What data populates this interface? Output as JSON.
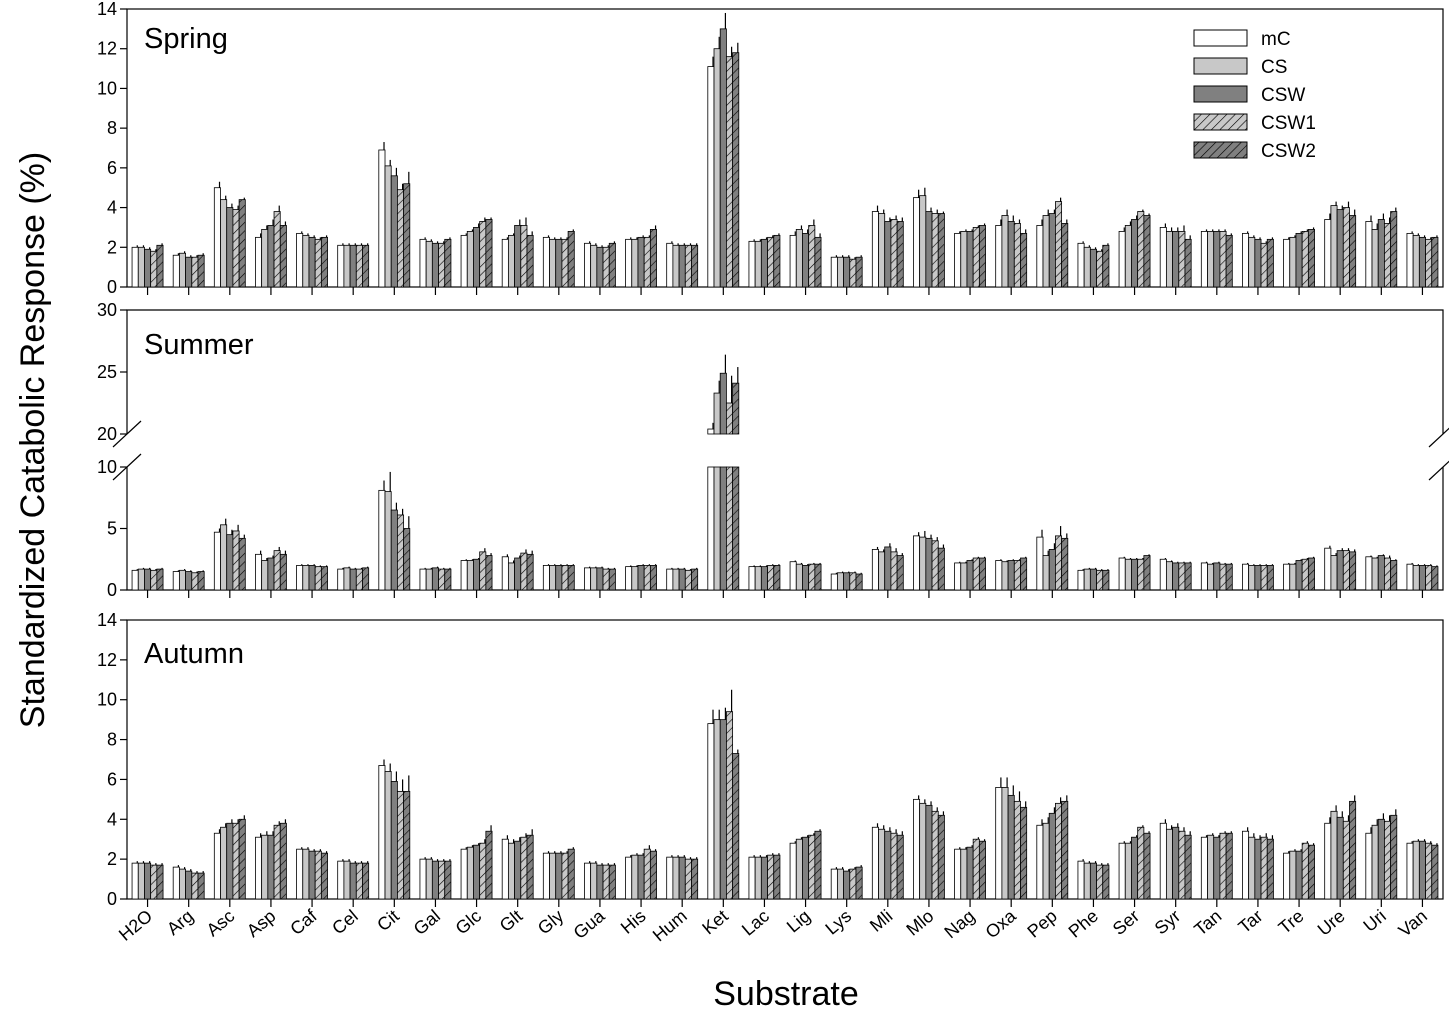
{
  "chart_data": {
    "type": "bar",
    "ylabel": "Standardized Catabolic Response (%)",
    "xlabel": "Substrate",
    "categories": [
      "H2O",
      "Arg",
      "Asc",
      "Asp",
      "Caf",
      "Cel",
      "Cit",
      "Gal",
      "Glc",
      "Glt",
      "Gly",
      "Gua",
      "His",
      "Hum",
      "Ket",
      "Lac",
      "Lig",
      "Lys",
      "Mli",
      "Mlo",
      "Nag",
      "Oxa",
      "Pep",
      "Phe",
      "Ser",
      "Syr",
      "Tan",
      "Tar",
      "Tre",
      "Ure",
      "Uri",
      "Van"
    ],
    "series_names": [
      "mC",
      "CS",
      "CSW",
      "CSW1",
      "CSW2"
    ],
    "colors": [
      "#ffffff",
      "#c8c8c8",
      "#808080",
      "#c8c8c8",
      "#808080"
    ],
    "patterns": [
      "solid",
      "solid",
      "solid",
      "hatch",
      "hatch"
    ],
    "panels": [
      {
        "title": "Spring",
        "ylim": [
          0,
          14
        ],
        "yticks": [
          "0",
          "2",
          "4",
          "6",
          "8",
          "10",
          "12",
          "14"
        ],
        "legend": "top-right",
        "values": [
          [
            2.0,
            1.6,
            5.0,
            2.5,
            2.7,
            2.1,
            6.9,
            2.4,
            2.6,
            2.4,
            2.5,
            2.2,
            2.4,
            2.2,
            11.1,
            2.3,
            2.6,
            1.5,
            3.8,
            4.5,
            2.7,
            3.1,
            3.1,
            2.2,
            2.8,
            3.0,
            2.8,
            2.7,
            2.4,
            3.4,
            3.3,
            2.7
          ],
          [
            2.0,
            1.7,
            4.4,
            2.9,
            2.6,
            2.1,
            6.1,
            2.3,
            2.8,
            2.6,
            2.4,
            2.1,
            2.4,
            2.1,
            12.0,
            2.3,
            2.9,
            1.5,
            3.7,
            4.6,
            2.8,
            3.6,
            3.6,
            2.0,
            3.1,
            2.8,
            2.8,
            2.5,
            2.5,
            4.1,
            2.9,
            2.6
          ],
          [
            1.9,
            1.5,
            4.0,
            3.1,
            2.5,
            2.1,
            5.6,
            2.2,
            3.0,
            3.1,
            2.4,
            2.0,
            2.5,
            2.1,
            13.0,
            2.4,
            2.7,
            1.5,
            3.3,
            3.8,
            2.8,
            3.3,
            3.7,
            1.9,
            3.4,
            2.8,
            2.8,
            2.4,
            2.7,
            3.9,
            3.4,
            2.5
          ],
          [
            1.8,
            1.5,
            3.9,
            3.8,
            2.4,
            2.1,
            4.9,
            2.2,
            3.3,
            3.1,
            2.4,
            2.0,
            2.5,
            2.1,
            11.6,
            2.5,
            3.1,
            1.4,
            3.4,
            3.7,
            3.0,
            3.2,
            4.3,
            1.8,
            3.8,
            2.8,
            2.8,
            2.2,
            2.8,
            4.0,
            3.2,
            2.4
          ],
          [
            2.1,
            1.6,
            4.4,
            3.1,
            2.5,
            2.1,
            5.2,
            2.4,
            3.4,
            2.6,
            2.8,
            2.2,
            2.9,
            2.1,
            11.8,
            2.6,
            2.5,
            1.5,
            3.3,
            3.7,
            3.1,
            2.7,
            3.2,
            2.1,
            3.6,
            2.4,
            2.6,
            2.4,
            2.9,
            3.6,
            3.8,
            2.5
          ]
        ],
        "errors": [
          [
            0.1,
            0.1,
            0.3,
            0.2,
            0.1,
            0.1,
            0.4,
            0.1,
            0.1,
            0.1,
            0.1,
            0.1,
            0.1,
            0.1,
            0.5,
            0.1,
            0.2,
            0.1,
            0.3,
            0.4,
            0.1,
            0.3,
            0.3,
            0.1,
            0.2,
            0.2,
            0.1,
            0.1,
            0.1,
            0.3,
            0.3,
            0.1
          ],
          [
            0.1,
            0.1,
            0.2,
            0.2,
            0.1,
            0.1,
            0.3,
            0.1,
            0.1,
            0.1,
            0.1,
            0.1,
            0.1,
            0.1,
            0.6,
            0.1,
            0.2,
            0.1,
            0.2,
            0.4,
            0.1,
            0.3,
            0.3,
            0.1,
            0.2,
            0.2,
            0.1,
            0.1,
            0.1,
            0.2,
            0.3,
            0.1
          ],
          [
            0.1,
            0.1,
            0.2,
            0.3,
            0.1,
            0.1,
            0.4,
            0.1,
            0.2,
            0.3,
            0.1,
            0.1,
            0.1,
            0.1,
            0.8,
            0.1,
            0.2,
            0.1,
            0.2,
            0.2,
            0.1,
            0.3,
            0.2,
            0.1,
            0.2,
            0.2,
            0.1,
            0.1,
            0.1,
            0.2,
            0.3,
            0.1
          ],
          [
            0.1,
            0.1,
            0.2,
            0.3,
            0.1,
            0.1,
            0.3,
            0.1,
            0.2,
            0.4,
            0.1,
            0.1,
            0.1,
            0.1,
            0.5,
            0.1,
            0.3,
            0.1,
            0.2,
            0.2,
            0.1,
            0.2,
            0.2,
            0.1,
            0.1,
            0.3,
            0.1,
            0.1,
            0.1,
            0.3,
            0.3,
            0.1
          ],
          [
            0.1,
            0.1,
            0.1,
            0.2,
            0.1,
            0.1,
            0.6,
            0.1,
            0.1,
            0.2,
            0.1,
            0.1,
            0.2,
            0.1,
            0.5,
            0.1,
            0.2,
            0.1,
            0.2,
            0.1,
            0.1,
            0.2,
            0.2,
            0.1,
            0.1,
            0.2,
            0.1,
            0.1,
            0.1,
            0.3,
            0.2,
            0.1
          ]
        ]
      },
      {
        "title": "Summer",
        "broken_axis": true,
        "ylim_lower": [
          0,
          10
        ],
        "yticks_lower": [
          "0",
          "5",
          "10"
        ],
        "ylim_upper": [
          20,
          30
        ],
        "yticks_upper": [
          "20",
          "25",
          "30"
        ],
        "values": [
          [
            1.6,
            1.5,
            4.7,
            2.9,
            2.0,
            1.7,
            8.1,
            1.7,
            2.4,
            2.7,
            2.0,
            1.8,
            1.9,
            1.7,
            20.4,
            1.9,
            2.3,
            1.3,
            3.3,
            4.4,
            2.2,
            2.4,
            4.3,
            1.6,
            2.6,
            2.5,
            2.2,
            2.1,
            2.1,
            3.4,
            2.7,
            2.1
          ],
          [
            1.7,
            1.6,
            5.3,
            2.4,
            2.0,
            1.8,
            8.0,
            1.7,
            2.4,
            2.2,
            2.0,
            1.8,
            1.9,
            1.7,
            23.3,
            1.9,
            2.1,
            1.4,
            3.1,
            4.3,
            2.2,
            2.3,
            2.8,
            1.7,
            2.5,
            2.3,
            2.1,
            2.0,
            2.1,
            2.8,
            2.6,
            2.0
          ],
          [
            1.7,
            1.5,
            4.5,
            2.6,
            2.0,
            1.7,
            6.5,
            1.8,
            2.5,
            2.6,
            2.0,
            1.8,
            2.0,
            1.7,
            24.9,
            1.9,
            2.0,
            1.4,
            3.5,
            4.2,
            2.4,
            2.4,
            3.3,
            1.7,
            2.5,
            2.2,
            2.2,
            2.0,
            2.4,
            3.2,
            2.8,
            2.0
          ],
          [
            1.6,
            1.4,
            4.8,
            3.2,
            1.9,
            1.7,
            6.1,
            1.7,
            3.1,
            3.0,
            2.0,
            1.7,
            2.0,
            1.6,
            22.5,
            2.0,
            2.1,
            1.4,
            3.1,
            4.0,
            2.6,
            2.4,
            4.4,
            1.6,
            2.5,
            2.2,
            2.1,
            2.0,
            2.5,
            3.2,
            2.6,
            2.0
          ],
          [
            1.7,
            1.5,
            4.2,
            2.9,
            1.9,
            1.8,
            5.0,
            1.7,
            2.8,
            2.9,
            2.0,
            1.7,
            2.0,
            1.7,
            24.1,
            2.0,
            2.1,
            1.3,
            2.8,
            3.4,
            2.6,
            2.6,
            4.2,
            1.6,
            2.8,
            2.2,
            2.1,
            2.0,
            2.6,
            3.1,
            2.4,
            1.9
          ]
        ],
        "errors": [
          [
            0.1,
            0.1,
            0.3,
            0.3,
            0.1,
            0.1,
            0.8,
            0.1,
            0.1,
            0.2,
            0.1,
            0.1,
            0.1,
            0.1,
            0.5,
            0.1,
            0.1,
            0.1,
            0.2,
            0.3,
            0.1,
            0.1,
            0.6,
            0.1,
            0.1,
            0.1,
            0.1,
            0.1,
            0.1,
            0.2,
            0.1,
            0.1
          ],
          [
            0.1,
            0.1,
            0.5,
            0.2,
            0.1,
            0.1,
            1.6,
            0.1,
            0.1,
            0.2,
            0.1,
            0.1,
            0.1,
            0.1,
            1.0,
            0.1,
            0.1,
            0.1,
            0.2,
            0.5,
            0.1,
            0.1,
            0.4,
            0.1,
            0.1,
            0.1,
            0.1,
            0.1,
            0.1,
            0.2,
            0.1,
            0.1
          ],
          [
            0.1,
            0.1,
            0.4,
            0.2,
            0.1,
            0.1,
            0.6,
            0.1,
            0.1,
            0.2,
            0.1,
            0.1,
            0.1,
            0.1,
            1.5,
            0.1,
            0.1,
            0.1,
            0.3,
            0.3,
            0.1,
            0.1,
            0.5,
            0.1,
            0.1,
            0.1,
            0.1,
            0.1,
            0.1,
            0.2,
            0.1,
            0.1
          ],
          [
            0.1,
            0.1,
            0.5,
            0.3,
            0.1,
            0.1,
            0.5,
            0.1,
            0.3,
            0.3,
            0.1,
            0.1,
            0.1,
            0.1,
            2.2,
            0.1,
            0.1,
            0.1,
            0.3,
            0.3,
            0.1,
            0.1,
            0.8,
            0.1,
            0.1,
            0.1,
            0.1,
            0.1,
            0.1,
            0.2,
            0.2,
            0.1
          ],
          [
            0.1,
            0.1,
            0.3,
            0.3,
            0.1,
            0.1,
            1.0,
            0.1,
            0.2,
            0.3,
            0.1,
            0.1,
            0.1,
            0.1,
            1.3,
            0.1,
            0.1,
            0.1,
            0.2,
            0.3,
            0.1,
            0.1,
            0.4,
            0.1,
            0.1,
            0.1,
            0.1,
            0.1,
            0.1,
            0.2,
            0.1,
            0.1
          ]
        ]
      },
      {
        "title": "Autumn",
        "ylim": [
          0,
          14
        ],
        "yticks": [
          "0",
          "2",
          "4",
          "6",
          "8",
          "10",
          "12",
          "14"
        ],
        "values": [
          [
            1.8,
            1.6,
            3.3,
            3.1,
            2.5,
            1.9,
            6.7,
            2.0,
            2.5,
            3.0,
            2.3,
            1.8,
            2.1,
            2.1,
            8.8,
            2.1,
            2.8,
            1.5,
            3.6,
            5.0,
            2.5,
            5.6,
            3.7,
            1.9,
            2.8,
            3.8,
            3.1,
            3.4,
            2.3,
            3.8,
            3.3,
            2.8
          ],
          [
            1.8,
            1.5,
            3.6,
            3.2,
            2.5,
            1.9,
            6.4,
            2.0,
            2.6,
            2.8,
            2.3,
            1.8,
            2.2,
            2.1,
            9.0,
            2.1,
            3.0,
            1.5,
            3.5,
            4.8,
            2.5,
            5.6,
            3.8,
            1.8,
            2.8,
            3.5,
            3.2,
            3.1,
            2.4,
            4.4,
            3.7,
            2.9
          ],
          [
            1.8,
            1.4,
            3.8,
            3.2,
            2.4,
            1.8,
            5.9,
            1.9,
            2.7,
            2.9,
            2.3,
            1.7,
            2.2,
            2.1,
            9.0,
            2.1,
            3.1,
            1.4,
            3.4,
            4.7,
            2.6,
            5.2,
            4.3,
            1.8,
            3.1,
            3.6,
            3.1,
            3.0,
            2.4,
            4.1,
            4.0,
            2.9
          ],
          [
            1.7,
            1.3,
            3.8,
            3.7,
            2.4,
            1.8,
            5.4,
            1.9,
            2.8,
            3.1,
            2.3,
            1.7,
            2.5,
            2.0,
            9.4,
            2.2,
            3.2,
            1.5,
            3.3,
            4.4,
            3.0,
            4.9,
            4.8,
            1.7,
            3.6,
            3.4,
            3.3,
            3.1,
            2.8,
            3.9,
            3.9,
            2.8
          ],
          [
            1.7,
            1.3,
            4.0,
            3.8,
            2.3,
            1.8,
            5.4,
            1.9,
            3.4,
            3.2,
            2.5,
            1.7,
            2.4,
            2.0,
            7.3,
            2.2,
            3.4,
            1.6,
            3.2,
            4.2,
            2.9,
            4.6,
            4.9,
            1.7,
            3.3,
            3.2,
            3.3,
            3.0,
            2.7,
            4.9,
            4.2,
            2.7
          ]
        ],
        "errors": [
          [
            0.1,
            0.1,
            0.2,
            0.2,
            0.1,
            0.1,
            0.3,
            0.1,
            0.1,
            0.2,
            0.1,
            0.1,
            0.1,
            0.1,
            0.7,
            0.1,
            0.1,
            0.1,
            0.2,
            0.2,
            0.1,
            0.5,
            0.3,
            0.1,
            0.1,
            0.2,
            0.1,
            0.2,
            0.1,
            0.3,
            0.3,
            0.1
          ],
          [
            0.1,
            0.1,
            0.2,
            0.2,
            0.1,
            0.1,
            0.4,
            0.1,
            0.1,
            0.2,
            0.1,
            0.1,
            0.1,
            0.1,
            0.5,
            0.1,
            0.1,
            0.1,
            0.2,
            0.2,
            0.1,
            0.5,
            0.3,
            0.1,
            0.1,
            0.2,
            0.1,
            0.2,
            0.1,
            0.3,
            0.3,
            0.1
          ],
          [
            0.1,
            0.1,
            0.2,
            0.2,
            0.1,
            0.1,
            0.5,
            0.1,
            0.1,
            0.2,
            0.1,
            0.1,
            0.1,
            0.1,
            0.6,
            0.1,
            0.1,
            0.1,
            0.2,
            0.2,
            0.1,
            0.5,
            0.3,
            0.1,
            0.1,
            0.2,
            0.1,
            0.2,
            0.1,
            0.3,
            0.3,
            0.1
          ],
          [
            0.1,
            0.1,
            0.2,
            0.2,
            0.1,
            0.1,
            0.6,
            0.1,
            0.2,
            0.2,
            0.1,
            0.1,
            0.2,
            0.1,
            1.1,
            0.1,
            0.1,
            0.1,
            0.2,
            0.2,
            0.1,
            0.5,
            0.3,
            0.1,
            0.1,
            0.2,
            0.1,
            0.2,
            0.1,
            0.3,
            0.3,
            0.1
          ],
          [
            0.1,
            0.1,
            0.2,
            0.2,
            0.1,
            0.1,
            0.8,
            0.1,
            0.3,
            0.3,
            0.1,
            0.1,
            0.1,
            0.1,
            0.2,
            0.1,
            0.1,
            0.1,
            0.2,
            0.2,
            0.1,
            0.3,
            0.3,
            0.1,
            0.1,
            0.2,
            0.1,
            0.2,
            0.1,
            0.3,
            0.3,
            0.1
          ]
        ]
      }
    ]
  }
}
